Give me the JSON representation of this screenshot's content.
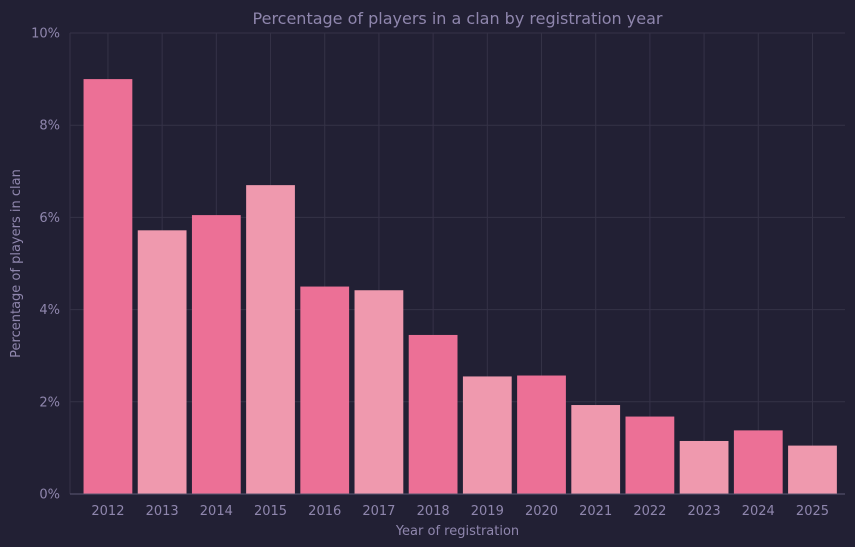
{
  "chart_data": {
    "type": "bar",
    "title": "Percentage of players in a clan by registration year",
    "xlabel": "Year of registration",
    "ylabel": "Percentage of players in clan",
    "categories": [
      "2012",
      "2013",
      "2014",
      "2015",
      "2016",
      "2017",
      "2018",
      "2019",
      "2020",
      "2021",
      "2022",
      "2023",
      "2024",
      "2025"
    ],
    "values": [
      9.0,
      5.72,
      6.05,
      6.7,
      4.5,
      4.42,
      3.45,
      2.55,
      2.57,
      1.93,
      1.68,
      1.15,
      1.38,
      1.05
    ],
    "ylim": [
      0,
      10
    ],
    "yticks": [
      0,
      2,
      4,
      6,
      8,
      10
    ],
    "ytick_labels": [
      "0%",
      "2%",
      "4%",
      "6%",
      "8%",
      "10%"
    ],
    "grid": true,
    "colors": {
      "background": "#222034",
      "bar_primary": "#ec7096",
      "bar_secondary": "#ef99ae",
      "grid": "#353247",
      "text": "#8f86ad"
    }
  }
}
